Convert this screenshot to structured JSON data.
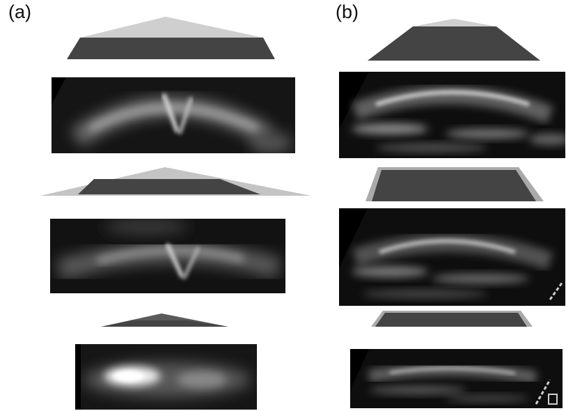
{
  "panels": [
    {
      "label": "(a)"
    },
    {
      "label": "(b)"
    }
  ],
  "colors": {
    "shape_dark": "#444444",
    "shape_light": "#cccccc",
    "shape_mid": "#a8a8a8",
    "background": "#ffffff",
    "ultrasound_bg": "#0a0a0a",
    "echo": "#dcdcdc"
  }
}
